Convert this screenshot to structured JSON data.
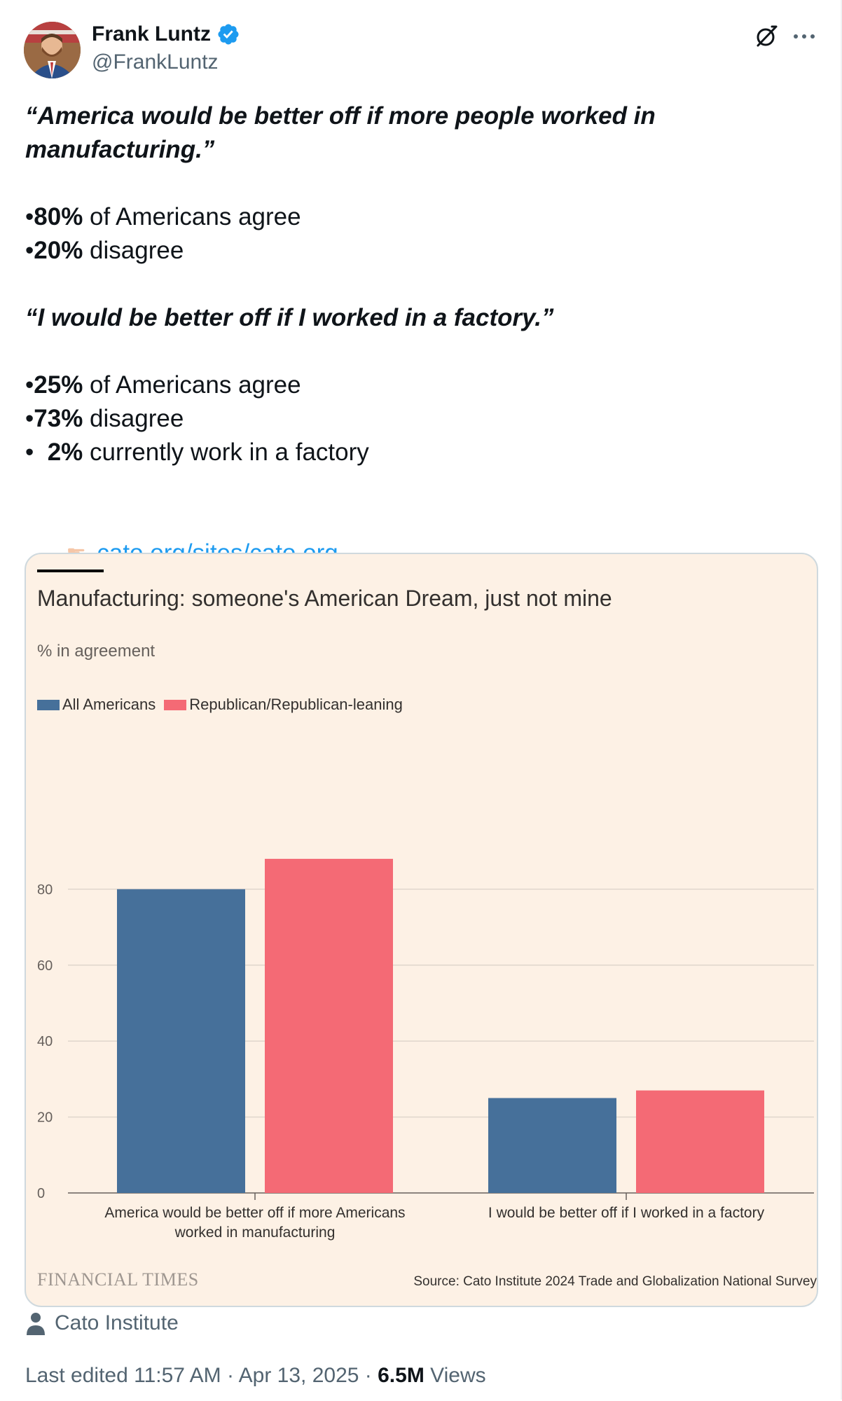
{
  "author": {
    "name": "Frank Luntz",
    "handle": "@FrankLuntz"
  },
  "tweet": {
    "quote1": "“America would be better off if more people worked in manufacturing.”",
    "quote1_line1": "“America would be better off if more people worked in",
    "quote1_line2": "manufacturing.”",
    "stats1": [
      {
        "bullet": "•",
        "pct": "80%",
        "text": " of Americans agree"
      },
      {
        "bullet": "•",
        "pct": "20%",
        "text": " disagree"
      }
    ],
    "quote2": "“I would be better off if I worked in a factory.”",
    "stats2": [
      {
        "bullet": "•",
        "pct": "25%",
        "text": " of Americans agree"
      },
      {
        "bullet": "•",
        "pct": "73%",
        "text": " disagree"
      },
      {
        "bullet": "•  ",
        "pct": "2%",
        "text": " currently work in a factory"
      }
    ],
    "link_text": "cato.org/sites/cato.org..."
  },
  "card": {
    "attribution": "Cato Institute",
    "ft_logo": "FINANCIAL TIMES",
    "source": "Source: Cato Institute 2024 Trade and Globalization National Survey"
  },
  "chart_data": {
    "type": "bar",
    "title": "Manufacturing: someone's American Dream, just not mine",
    "ylabel": "% in agreement",
    "categories": [
      [
        "America would be better off if more Americans",
        "worked in manufacturing"
      ],
      [
        "I would be better off if I worked in a factory"
      ]
    ],
    "series": [
      {
        "name": "All Americans",
        "color": "#46709a",
        "values": [
          80,
          25
        ]
      },
      {
        "name": "Republican/Republican-leaning",
        "color": "#f46a75",
        "values": [
          88,
          27
        ]
      }
    ],
    "yticks": [
      0,
      20,
      40,
      60,
      80
    ],
    "ylim": [
      0,
      100
    ]
  },
  "meta": {
    "edited": "Last edited 11:57 AM · Apr 13, 2025 · ",
    "views": "6.5M",
    "views_label": " Views"
  },
  "colors": {
    "link": "#1d9bf0",
    "verified": "#1d9bf0",
    "card_bg": "#fdf1e5"
  }
}
